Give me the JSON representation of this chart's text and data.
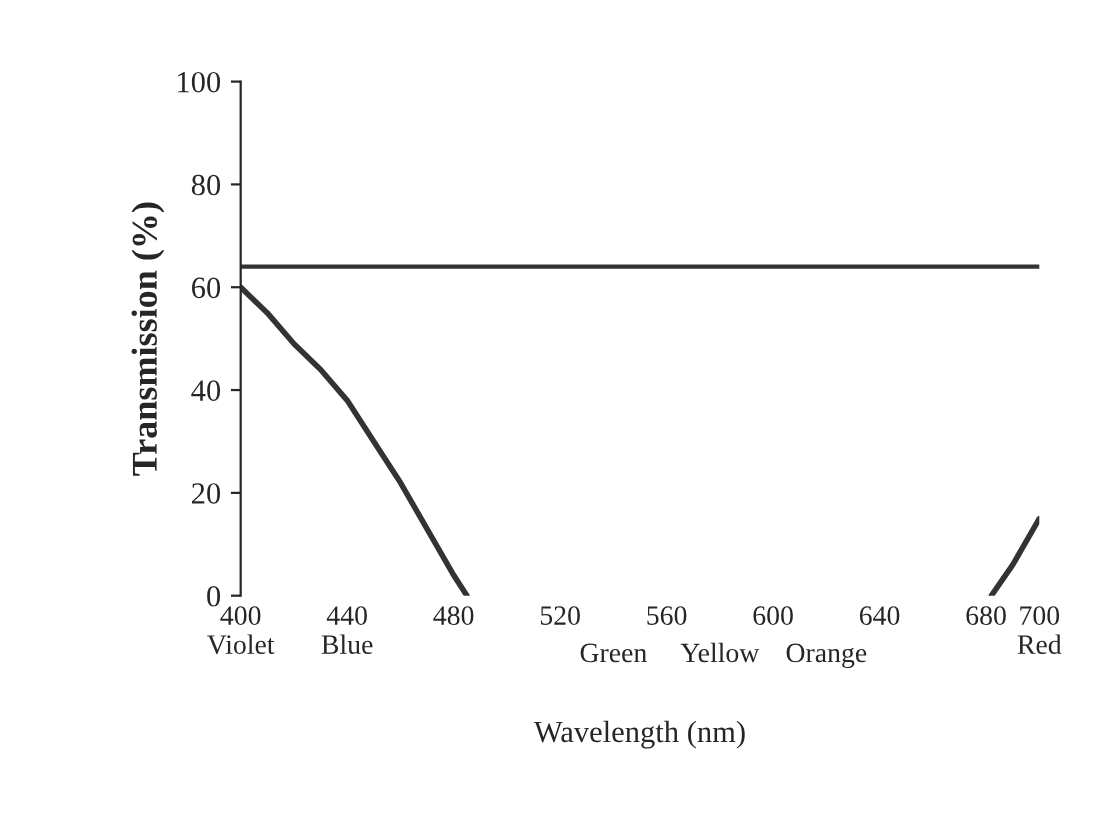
{
  "chart_data": {
    "type": "line",
    "xlabel": "Wavelength (nm)",
    "ylabel": "Transmission (%)",
    "series": [
      {
        "color": "#333333",
        "x": [
          400,
          410,
          420,
          430,
          440,
          450,
          460,
          470,
          480,
          485,
          592,
          682,
          690,
          700
        ],
        "values": [
          60,
          55,
          49,
          44,
          38,
          30,
          22,
          13,
          4,
          0,
          null,
          0,
          6,
          15
        ]
      }
    ],
    "xlim": [
      400,
      700
    ],
    "ylim": [
      0,
      100
    ],
    "xticks": [
      {
        "value": 400,
        "label": "400\nViolet"
      },
      {
        "value": 440,
        "label": "440\nBlue"
      },
      480,
      520,
      560,
      600,
      640,
      680,
      {
        "value": 700,
        "label": "700\nRed"
      }
    ],
    "yticks": [
      0,
      20,
      40,
      60,
      80,
      100
    ],
    "ref_lines": [
      {
        "axis": "y",
        "value": 64,
        "label": null,
        "color": "#333333"
      }
    ],
    "annotations": [
      "Green",
      "Yellow",
      "Orange"
    ],
    "grid": false,
    "legend": false,
    "marker": "none",
    "line_style": "solid"
  }
}
